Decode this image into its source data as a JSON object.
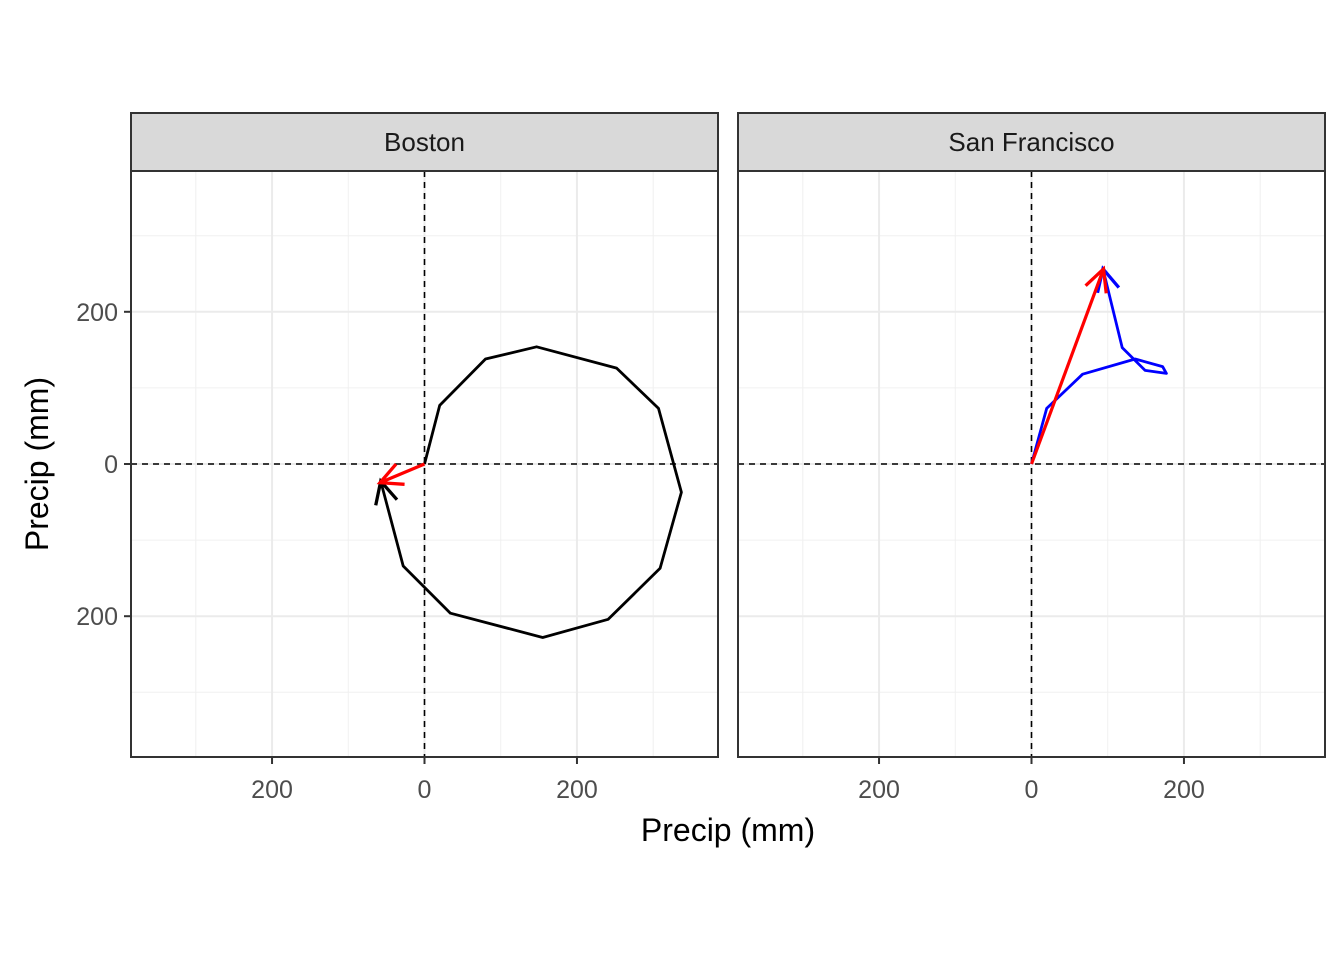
{
  "chart_data": {
    "type": "line",
    "facet_strip_labels": [
      "Boston",
      "San Francisco"
    ],
    "xlabel": "Precip (mm)",
    "ylabel": "Precip (mm)",
    "xlim": [
      -385,
      385
    ],
    "ylim": [
      -385,
      385
    ],
    "x_ticks": [
      -200,
      0,
      200
    ],
    "x_tick_labels": [
      "200",
      "0",
      "200"
    ],
    "y_ticks": [
      200,
      0,
      -200
    ],
    "y_tick_labels": [
      "200",
      "0",
      "200"
    ],
    "grid": true,
    "reference_lines": {
      "x": 0,
      "y": 0,
      "style": "dashed"
    },
    "panels": [
      {
        "label": "Boston",
        "path_color": "#000000",
        "arrow_color": "#ff0000",
        "path": [
          [
            0,
            0
          ],
          [
            20,
            77
          ],
          [
            80,
            138
          ],
          [
            147,
            154
          ],
          [
            252,
            126
          ],
          [
            307,
            73
          ],
          [
            337,
            -37
          ],
          [
            309,
            -137
          ],
          [
            241,
            -204
          ],
          [
            155,
            -228
          ],
          [
            34,
            -196
          ],
          [
            -28,
            -134
          ],
          [
            -57,
            -24
          ]
        ],
        "resultant": [
          [
            0,
            0
          ],
          [
            -57,
            -24
          ]
        ]
      },
      {
        "label": "San Francisco",
        "path_color": "#0000ff",
        "arrow_color": "#ff0000",
        "path": [
          [
            0,
            0
          ],
          [
            20,
            73
          ],
          [
            67,
            118
          ],
          [
            136,
            138
          ],
          [
            172,
            128
          ],
          [
            177,
            119
          ],
          [
            149,
            123
          ],
          [
            119,
            153
          ],
          [
            94,
            255
          ]
        ],
        "resultant": [
          [
            0,
            0
          ],
          [
            94,
            255
          ]
        ]
      }
    ]
  }
}
